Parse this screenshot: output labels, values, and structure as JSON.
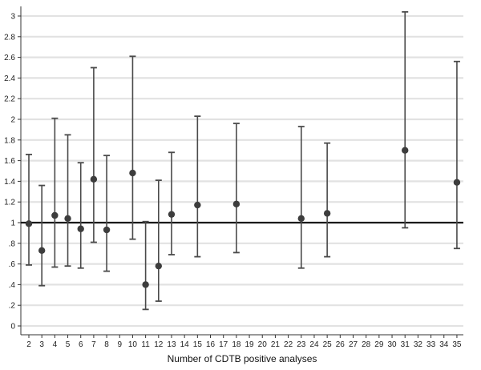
{
  "chart_data": {
    "type": "scatter",
    "subtype": "point-with-error-bars",
    "title": "",
    "xlabel": "Number of CDTB positive analyses",
    "ylabel": "",
    "x_categories": [
      "2",
      "3",
      "4",
      "5",
      "6",
      "7",
      "8",
      "9",
      "10",
      "11",
      "12",
      "13",
      "14",
      "15",
      "16",
      "17",
      "18",
      "19",
      "20",
      "21",
      "22",
      "23",
      "24",
      "25",
      "26",
      "27",
      "28",
      "29",
      "30",
      "31",
      "32",
      "33",
      "34",
      "35"
    ],
    "ylim": [
      0,
      3
    ],
    "y_ticks": [
      0,
      0.2,
      0.4,
      0.6,
      0.8,
      1,
      1.2,
      1.4,
      1.6,
      1.8,
      2,
      2.2,
      2.4,
      2.6,
      2.8,
      3
    ],
    "y_tick_labels": [
      "0",
      ".2",
      ".4",
      ".6",
      ".8",
      "1",
      "1.2",
      "1.4",
      "1.6",
      "1.8",
      "2",
      "2.2",
      "2.4",
      "2.6",
      "2.8",
      "3"
    ],
    "grid": "horizontal",
    "reference_line": 1,
    "points": [
      {
        "x": 2,
        "y": 0.99,
        "lower": 0.59,
        "upper": 1.66
      },
      {
        "x": 3,
        "y": 0.73,
        "lower": 0.39,
        "upper": 1.36
      },
      {
        "x": 4,
        "y": 1.07,
        "lower": 0.57,
        "upper": 2.01
      },
      {
        "x": 5,
        "y": 1.04,
        "lower": 0.58,
        "upper": 1.85
      },
      {
        "x": 6,
        "y": 0.94,
        "lower": 0.56,
        "upper": 1.58
      },
      {
        "x": 7,
        "y": 1.42,
        "lower": 0.81,
        "upper": 2.5
      },
      {
        "x": 8,
        "y": 0.93,
        "lower": 0.53,
        "upper": 1.65
      },
      {
        "x": 10,
        "y": 1.48,
        "lower": 0.84,
        "upper": 2.61
      },
      {
        "x": 11,
        "y": 0.4,
        "lower": 0.16,
        "upper": 1.01
      },
      {
        "x": 12,
        "y": 0.58,
        "lower": 0.24,
        "upper": 1.41
      },
      {
        "x": 13,
        "y": 1.08,
        "lower": 0.69,
        "upper": 1.68
      },
      {
        "x": 15,
        "y": 1.17,
        "lower": 0.67,
        "upper": 2.03
      },
      {
        "x": 18,
        "y": 1.18,
        "lower": 0.71,
        "upper": 1.96
      },
      {
        "x": 23,
        "y": 1.04,
        "lower": 0.56,
        "upper": 1.93
      },
      {
        "x": 25,
        "y": 1.09,
        "lower": 0.67,
        "upper": 1.77
      },
      {
        "x": 31,
        "y": 1.7,
        "lower": 0.95,
        "upper": 3.04
      },
      {
        "x": 35,
        "y": 1.39,
        "lower": 0.75,
        "upper": 2.56
      }
    ],
    "colors": {
      "marker": "#3d3d3d",
      "error_bar": "#4a4a4a",
      "reference_line": "#1a1a1a",
      "grid": "#e2e2e2",
      "axis": "#333333"
    }
  }
}
